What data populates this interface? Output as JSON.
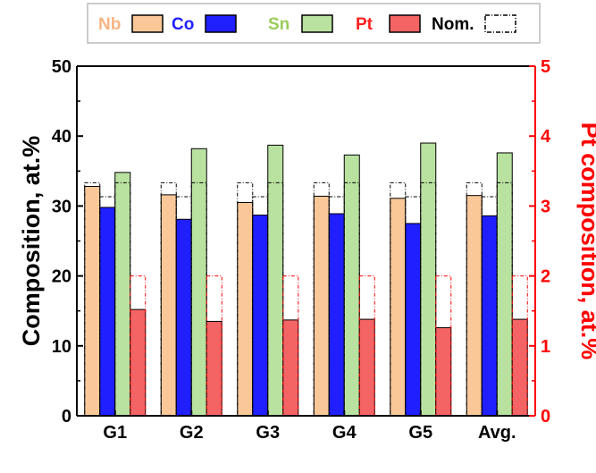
{
  "chart_data": {
    "type": "bar",
    "categories": [
      "G1",
      "G2",
      "G3",
      "G4",
      "G5",
      "Avg."
    ],
    "series": [
      {
        "name": "Nb",
        "axis": "left",
        "color": "#FAC898",
        "values": [
          32.8,
          31.6,
          30.5,
          31.4,
          31.1,
          31.5
        ]
      },
      {
        "name": "Co",
        "axis": "left",
        "color": "#1F1FFF",
        "values": [
          29.8,
          28.1,
          28.7,
          28.9,
          27.5,
          28.6
        ]
      },
      {
        "name": "Sn",
        "axis": "left",
        "color": "#B9E1A0",
        "values": [
          34.8,
          38.2,
          38.7,
          37.3,
          39.0,
          37.6
        ]
      },
      {
        "name": "Pt",
        "axis": "right",
        "color": "#F56464",
        "values": [
          1.52,
          1.35,
          1.37,
          1.38,
          1.26,
          1.38
        ]
      }
    ],
    "nominal": {
      "name": "Nom.",
      "Nb": 33.33,
      "Co": 31.33,
      "Sn": 33.33,
      "Pt": 2.0
    },
    "ylabel": "Composition, at.%",
    "ylabel_right": "Pt composition, at.%",
    "ylim": [
      0,
      50
    ],
    "ylim_right": [
      0,
      5
    ],
    "yticks": [
      "0",
      "10",
      "20",
      "30",
      "40",
      "50"
    ],
    "yticks_right": [
      "0",
      "1",
      "2",
      "3",
      "4",
      "5"
    ],
    "legend_placement": "top",
    "grid": false,
    "left_axis_color": "#000000",
    "right_axis_color": "#FF0000",
    "nominal_color": "#000000",
    "nominal_pt_color": "#FF0000"
  }
}
